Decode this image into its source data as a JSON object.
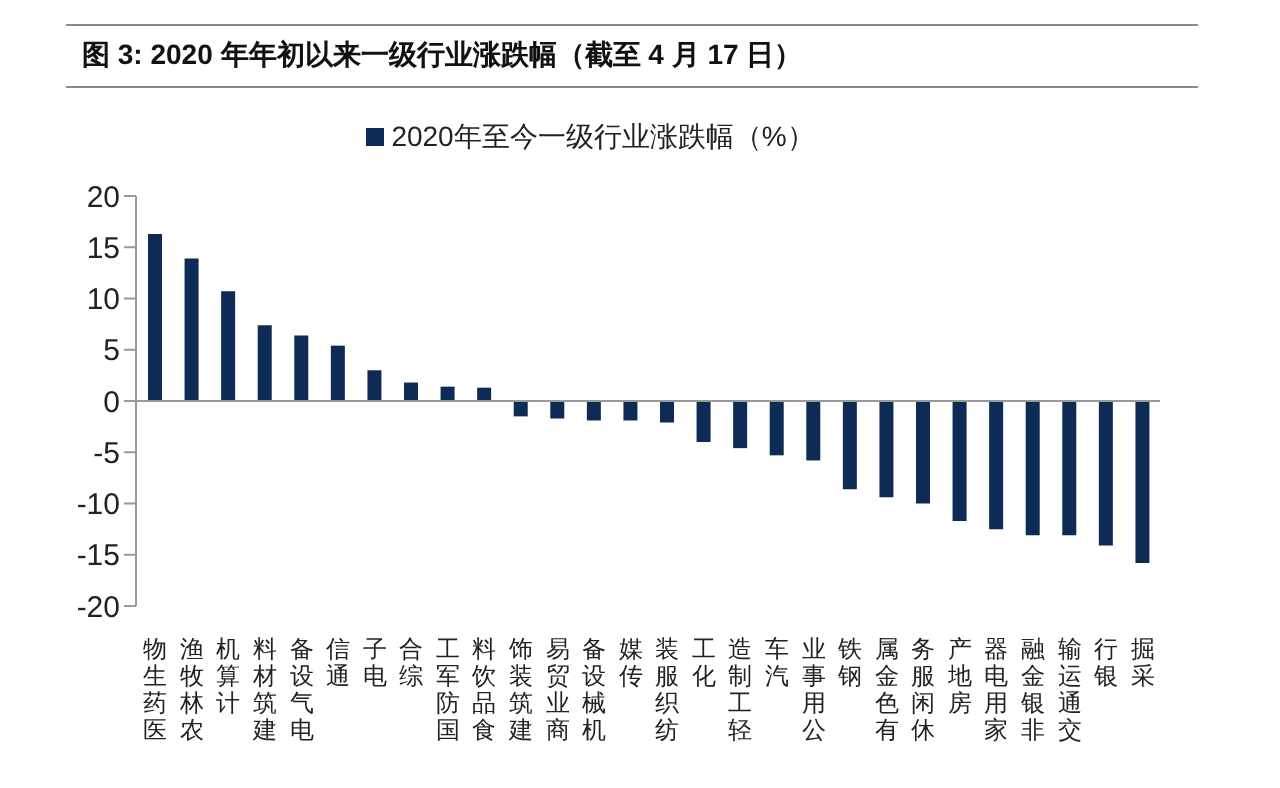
{
  "chart_data": {
    "type": "bar",
    "title": "图 3: 2020 年年初以来一级行业涨跌幅（截至 4 月 17 日）",
    "categories": [
      "医药生物",
      "农林牧渔",
      "计算机",
      "建筑材料",
      "电气设备",
      "通信",
      "电子",
      "综合",
      "国防军工",
      "食品饮料",
      "建筑装饰",
      "商业贸易",
      "机械设备",
      "传媒",
      "纺织服装",
      "化工",
      "轻工制造",
      "汽车",
      "公用事业",
      "钢铁",
      "有色金属",
      "休闲服务",
      "房地产",
      "家用电器",
      "非银金融",
      "交通运输",
      "银行",
      "采掘"
    ],
    "series": [
      {
        "name": "2020年至今一级行业涨跌幅（%）",
        "color": "#0d2b55",
        "values": [
          16.3,
          13.9,
          10.7,
          7.4,
          6.4,
          5.4,
          3.0,
          1.8,
          1.4,
          1.3,
          -1.5,
          -1.7,
          -1.9,
          -1.9,
          -2.1,
          -4.0,
          -4.6,
          -5.3,
          -5.8,
          -8.6,
          -9.4,
          -10.0,
          -11.7,
          -12.5,
          -13.1,
          -13.1,
          -14.1,
          -15.8
        ]
      }
    ],
    "ylim": [
      -20,
      20
    ],
    "yticks": [
      -20,
      -15,
      -10,
      -5,
      0,
      5,
      10,
      15,
      20
    ],
    "legend": "top"
  }
}
